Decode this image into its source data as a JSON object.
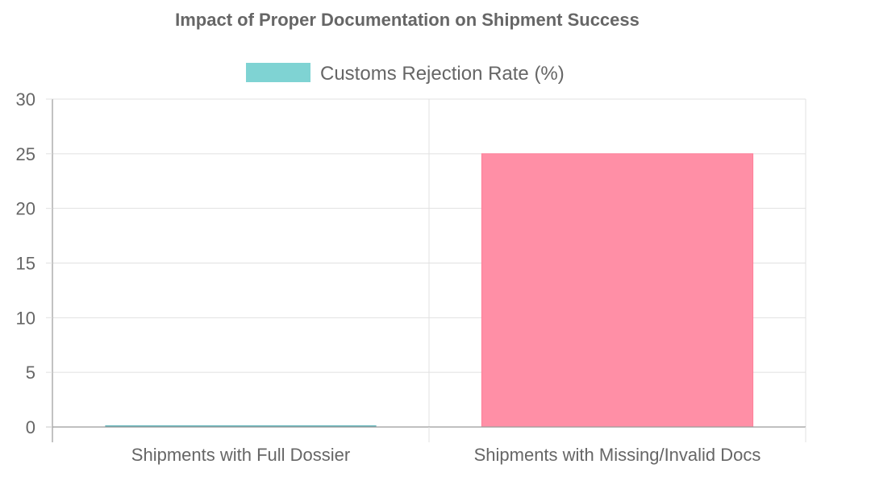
{
  "chart_data": {
    "type": "bar",
    "title": "Impact of Proper Documentation on Shipment Success",
    "categories": [
      "Shipments with Full Dossier",
      "Shipments with Missing/Invalid Docs"
    ],
    "series": [
      {
        "name": "Customs Rejection Rate (%)",
        "values": [
          0,
          25
        ],
        "colors": [
          "#7fd3d3",
          "#ff8fa6"
        ],
        "border_colors": [
          "#5fb3b8",
          "#ff7f99"
        ]
      }
    ],
    "ylim": [
      0,
      30
    ],
    "yticks": [
      0,
      5,
      10,
      15,
      20,
      25,
      30
    ],
    "grid": true,
    "legend_position": "top-center",
    "legend_color": "#7fd3d3"
  }
}
